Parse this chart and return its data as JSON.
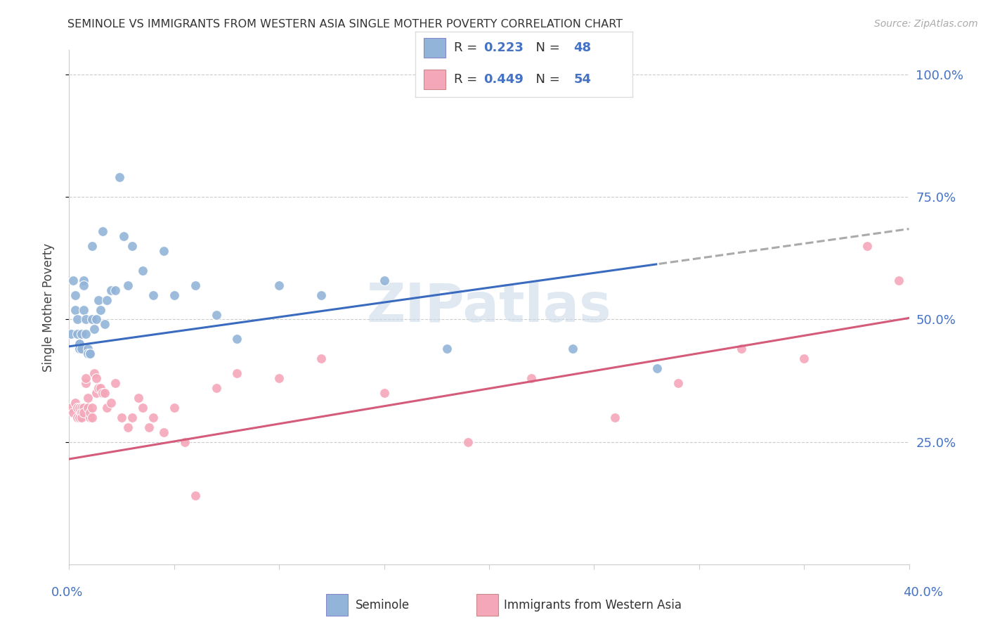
{
  "title": "SEMINOLE VS IMMIGRANTS FROM WESTERN ASIA SINGLE MOTHER POVERTY CORRELATION CHART",
  "source": "Source: ZipAtlas.com",
  "ylabel": "Single Mother Poverty",
  "ytick_labels": [
    "25.0%",
    "50.0%",
    "75.0%",
    "100.0%"
  ],
  "ytick_values": [
    0.25,
    0.5,
    0.75,
    1.0
  ],
  "xmin": 0.0,
  "xmax": 0.4,
  "ymin": 0.0,
  "ymax": 1.05,
  "blue_color": "#92b4d8",
  "pink_color": "#f4a7b9",
  "trend_blue": "#3a6bbf",
  "trend_pink": "#d45b7a",
  "watermark": "ZIPatlas",
  "seminole_x": [
    0.001,
    0.002,
    0.003,
    0.003,
    0.004,
    0.004,
    0.005,
    0.005,
    0.005,
    0.006,
    0.006,
    0.007,
    0.007,
    0.007,
    0.008,
    0.008,
    0.009,
    0.009,
    0.01,
    0.01,
    0.011,
    0.011,
    0.012,
    0.013,
    0.014,
    0.015,
    0.016,
    0.017,
    0.018,
    0.02,
    0.022,
    0.024,
    0.026,
    0.028,
    0.03,
    0.035,
    0.04,
    0.045,
    0.05,
    0.06,
    0.07,
    0.08,
    0.1,
    0.12,
    0.15,
    0.18,
    0.24,
    0.28
  ],
  "seminole_y": [
    0.47,
    0.58,
    0.55,
    0.52,
    0.5,
    0.47,
    0.45,
    0.45,
    0.44,
    0.44,
    0.47,
    0.58,
    0.57,
    0.52,
    0.5,
    0.47,
    0.44,
    0.43,
    0.43,
    0.43,
    0.65,
    0.5,
    0.48,
    0.5,
    0.54,
    0.52,
    0.68,
    0.49,
    0.54,
    0.56,
    0.56,
    0.79,
    0.67,
    0.57,
    0.65,
    0.6,
    0.55,
    0.64,
    0.55,
    0.57,
    0.51,
    0.46,
    0.57,
    0.55,
    0.58,
    0.44,
    0.44,
    0.4
  ],
  "immigrants_x": [
    0.001,
    0.002,
    0.003,
    0.004,
    0.004,
    0.005,
    0.005,
    0.006,
    0.006,
    0.006,
    0.007,
    0.007,
    0.008,
    0.008,
    0.009,
    0.009,
    0.01,
    0.01,
    0.011,
    0.011,
    0.012,
    0.013,
    0.013,
    0.014,
    0.015,
    0.016,
    0.017,
    0.018,
    0.02,
    0.022,
    0.025,
    0.028,
    0.03,
    0.033,
    0.035,
    0.038,
    0.04,
    0.045,
    0.05,
    0.055,
    0.06,
    0.07,
    0.08,
    0.1,
    0.12,
    0.15,
    0.19,
    0.22,
    0.26,
    0.29,
    0.32,
    0.35,
    0.38,
    0.395
  ],
  "immigrants_y": [
    0.32,
    0.31,
    0.33,
    0.32,
    0.3,
    0.32,
    0.3,
    0.32,
    0.31,
    0.3,
    0.32,
    0.31,
    0.37,
    0.38,
    0.34,
    0.32,
    0.3,
    0.31,
    0.32,
    0.3,
    0.39,
    0.38,
    0.35,
    0.36,
    0.36,
    0.35,
    0.35,
    0.32,
    0.33,
    0.37,
    0.3,
    0.28,
    0.3,
    0.34,
    0.32,
    0.28,
    0.3,
    0.27,
    0.32,
    0.25,
    0.14,
    0.36,
    0.39,
    0.38,
    0.42,
    0.35,
    0.25,
    0.38,
    0.3,
    0.37,
    0.44,
    0.42,
    0.65,
    0.58
  ],
  "sem_intercept": 0.445,
  "sem_slope": 0.6,
  "imm_intercept": 0.215,
  "imm_slope": 0.72
}
